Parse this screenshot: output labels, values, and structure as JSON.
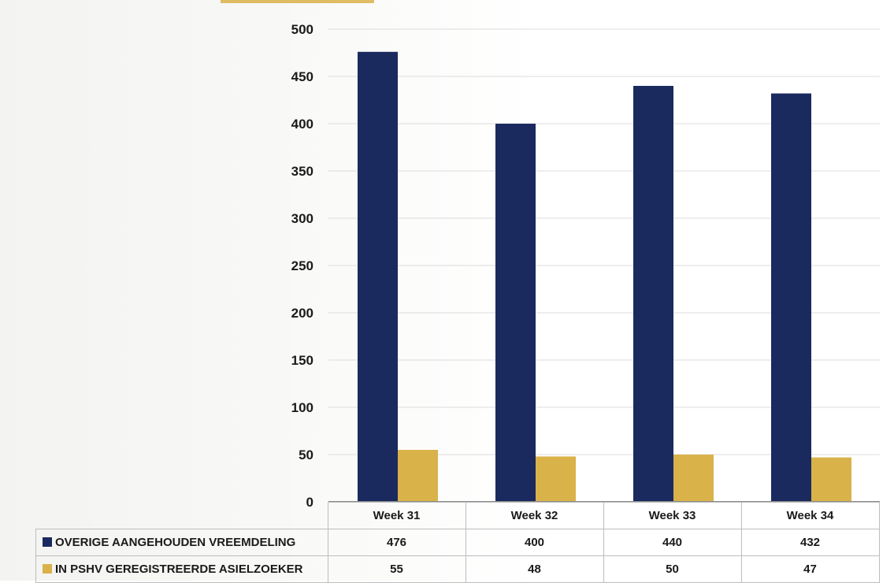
{
  "chart_data": {
    "type": "bar",
    "categories": [
      "Week 31",
      "Week 32",
      "Week 33",
      "Week 34"
    ],
    "series": [
      {
        "name": "OVERIGE AANGEHOUDEN VREEMDELING",
        "values": [
          476,
          400,
          440,
          432
        ],
        "color": "#1b2a5e"
      },
      {
        "name": "IN PSHV GEREGISTREERDE ASIELZOEKER",
        "values": [
          55,
          48,
          50,
          47
        ],
        "color": "#d9b24a"
      }
    ],
    "ylim": [
      0,
      500
    ],
    "yticks": [
      "0",
      "50",
      "100",
      "150",
      "200",
      "250",
      "300",
      "350",
      "400",
      "450",
      "500"
    ],
    "grid": true,
    "legend_placement": "bottom data table",
    "title": "",
    "xlabel": "",
    "ylabel": ""
  }
}
